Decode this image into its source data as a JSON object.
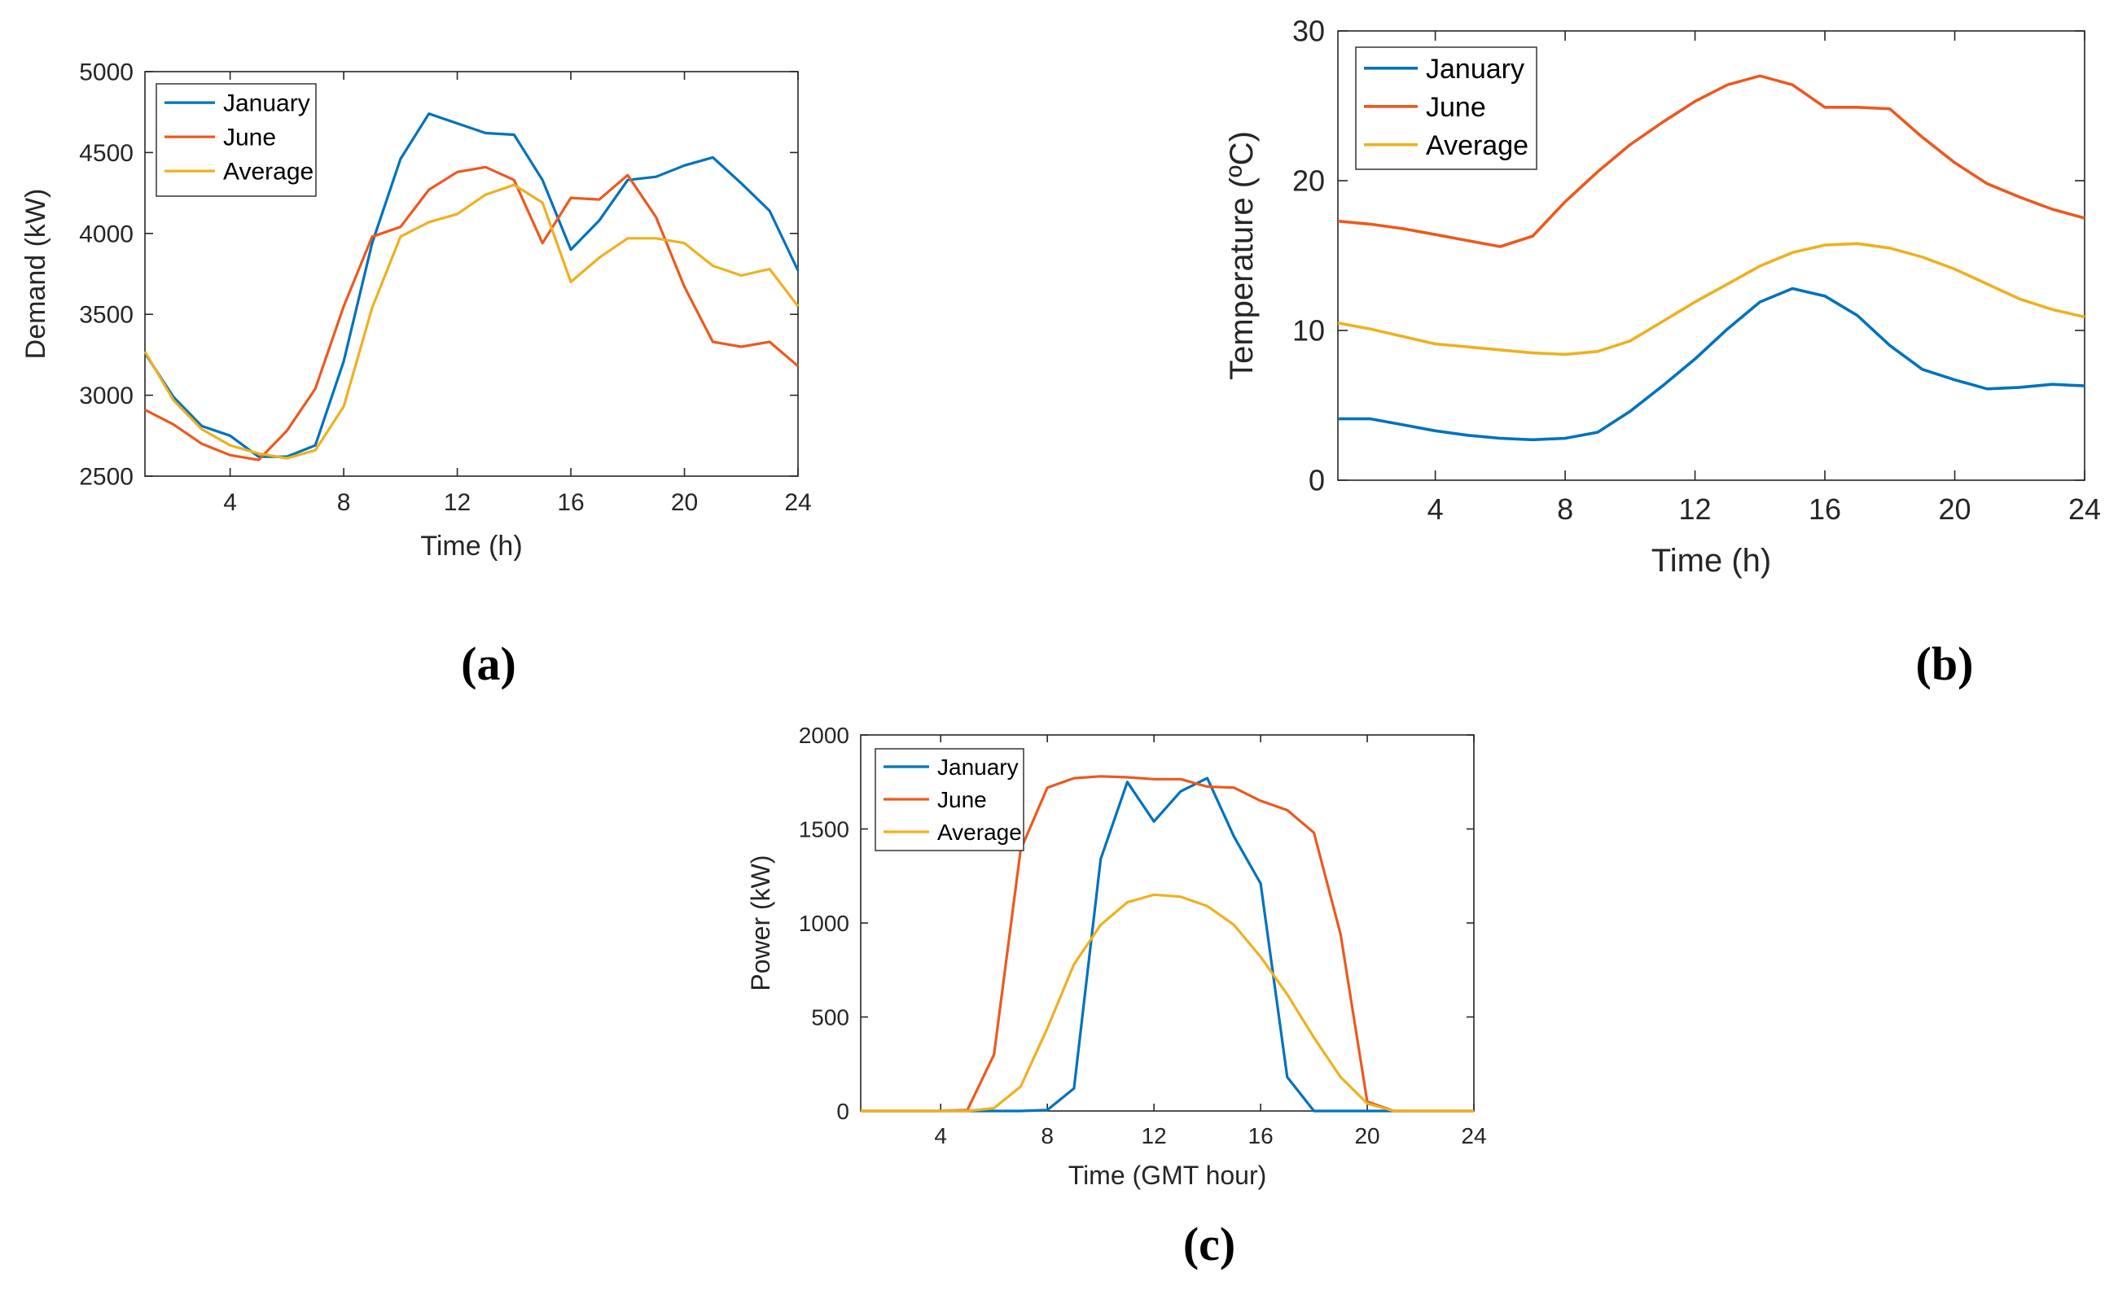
{
  "colors": {
    "January": "#0072BD",
    "June": "#EA5A1F",
    "Average": "#EDB120",
    "axis": "#262626"
  },
  "chart_data": [
    {
      "type": "line",
      "panel_label": "(a)",
      "xlabel": "Time (h)",
      "ylabel": "Demand (kW)",
      "xlim": [
        1,
        24
      ],
      "ylim": [
        2500,
        5000
      ],
      "xticks": [
        4,
        8,
        12,
        16,
        20,
        24
      ],
      "yticks": [
        2500,
        3000,
        3500,
        4000,
        4500,
        5000
      ],
      "legend_position": "top-left",
      "grid": false,
      "x": [
        1,
        2,
        3,
        4,
        5,
        6,
        7,
        8,
        9,
        10,
        11,
        12,
        13,
        14,
        15,
        16,
        17,
        18,
        19,
        20,
        21,
        22,
        23,
        24
      ],
      "series": [
        {
          "name": "January",
          "values": [
            3260,
            2990,
            2810,
            2750,
            2620,
            2620,
            2690,
            3210,
            3940,
            4460,
            4740,
            4680,
            4620,
            4610,
            4330,
            3900,
            4080,
            4330,
            4350,
            4420,
            4470,
            4310,
            4140,
            3770
          ]
        },
        {
          "name": "June",
          "values": [
            2910,
            2820,
            2700,
            2630,
            2600,
            2780,
            3040,
            3550,
            3980,
            4040,
            4270,
            4380,
            4410,
            4330,
            3940,
            4220,
            4210,
            4360,
            4100,
            3670,
            3330,
            3300,
            3330,
            3180
          ]
        },
        {
          "name": "Average",
          "values": [
            3270,
            2970,
            2790,
            2690,
            2640,
            2610,
            2660,
            2930,
            3540,
            3980,
            4070,
            4120,
            4240,
            4300,
            4190,
            3700,
            3850,
            3970,
            3970,
            3940,
            3800,
            3740,
            3780,
            3550
          ]
        }
      ]
    },
    {
      "type": "line",
      "panel_label": "(b)",
      "xlabel": "Time (h)",
      "ylabel": "Temperature (ºC)",
      "xlim": [
        1,
        24
      ],
      "ylim": [
        0,
        30
      ],
      "xticks": [
        4,
        8,
        12,
        16,
        20,
        24
      ],
      "yticks": [
        0,
        10,
        20,
        30
      ],
      "legend_position": "top-left",
      "grid": false,
      "x": [
        1,
        2,
        3,
        4,
        5,
        6,
        7,
        8,
        9,
        10,
        11,
        12,
        13,
        14,
        15,
        16,
        17,
        18,
        19,
        20,
        21,
        22,
        23,
        24
      ],
      "series": [
        {
          "name": "January",
          "values": [
            4.1,
            4.1,
            3.7,
            3.3,
            3.0,
            2.8,
            2.7,
            2.8,
            3.2,
            4.6,
            6.3,
            8.1,
            10.1,
            11.9,
            12.8,
            12.3,
            11.0,
            9.0,
            7.4,
            6.7,
            6.1,
            6.2,
            6.4,
            6.3
          ]
        },
        {
          "name": "June",
          "values": [
            17.3,
            17.1,
            16.8,
            16.4,
            16.0,
            15.6,
            16.3,
            18.6,
            20.6,
            22.4,
            23.9,
            25.3,
            26.4,
            27.0,
            26.4,
            24.9,
            24.9,
            24.8,
            22.9,
            21.2,
            19.8,
            18.9,
            18.1,
            17.5
          ]
        },
        {
          "name": "Average",
          "values": [
            10.5,
            10.1,
            9.6,
            9.1,
            8.9,
            8.7,
            8.5,
            8.4,
            8.6,
            9.3,
            10.6,
            11.9,
            13.1,
            14.3,
            15.2,
            15.7,
            15.8,
            15.5,
            14.9,
            14.1,
            13.1,
            12.1,
            11.4,
            10.9
          ]
        }
      ]
    },
    {
      "type": "line",
      "panel_label": "(c)",
      "xlabel": "Time (GMT hour)",
      "ylabel": "Power (kW)",
      "xlim": [
        1,
        24
      ],
      "ylim": [
        0,
        2000
      ],
      "xticks": [
        4,
        8,
        12,
        16,
        20,
        24
      ],
      "yticks": [
        0,
        500,
        1000,
        1500,
        2000
      ],
      "legend_position": "top-left",
      "grid": false,
      "x": [
        1,
        2,
        3,
        4,
        5,
        6,
        7,
        8,
        9,
        10,
        11,
        12,
        13,
        14,
        15,
        16,
        17,
        18,
        19,
        20,
        21,
        22,
        23,
        24
      ],
      "series": [
        {
          "name": "January",
          "values": [
            0,
            0,
            0,
            0,
            0,
            0,
            0,
            5,
            120,
            1340,
            1750,
            1540,
            1700,
            1770,
            1460,
            1210,
            180,
            0,
            0,
            0,
            0,
            0,
            0,
            0
          ]
        },
        {
          "name": "June",
          "values": [
            0,
            0,
            0,
            0,
            5,
            300,
            1390,
            1720,
            1770,
            1780,
            1775,
            1765,
            1765,
            1725,
            1720,
            1650,
            1600,
            1480,
            940,
            50,
            0,
            0,
            0,
            0
          ]
        },
        {
          "name": "Average",
          "values": [
            0,
            0,
            0,
            0,
            0,
            15,
            130,
            440,
            780,
            990,
            1110,
            1150,
            1140,
            1090,
            990,
            820,
            620,
            390,
            180,
            40,
            0,
            0,
            0,
            0
          ]
        }
      ]
    }
  ]
}
